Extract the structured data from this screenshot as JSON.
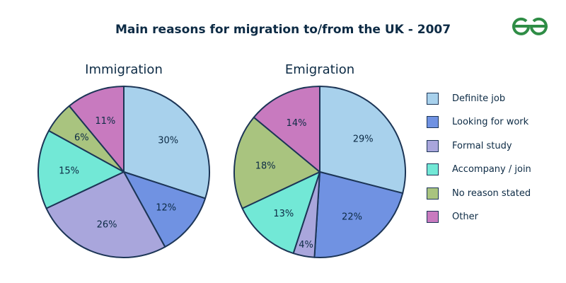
{
  "title": "Main reasons for migration to/from the UK - 2007",
  "logo": {
    "icon": "geeksforgeeks-logo-icon",
    "color": "#2f8d46"
  },
  "chart_data": {
    "type": "pie",
    "title": "Main reasons for migration to/from the UK - 2007",
    "categories": [
      "Definite job",
      "Looking for work",
      "Formal study",
      "Accompany / join",
      "No reason stated",
      "Other"
    ],
    "colors": [
      "#a8d1ec",
      "#7092e2",
      "#a9a6dc",
      "#72e8d6",
      "#a9c47f",
      "#c87abf"
    ],
    "legend_position": "right",
    "pies": [
      {
        "name": "Immigration",
        "values": [
          30,
          12,
          26,
          15,
          6,
          11
        ],
        "labels": [
          "30%",
          "12%",
          "26%",
          "15%",
          "6%",
          "11%"
        ]
      },
      {
        "name": "Emigration",
        "values": [
          29,
          22,
          4,
          13,
          18,
          14
        ],
        "labels": [
          "29%",
          "22%",
          "4%",
          "13%",
          "18%",
          "14%"
        ]
      }
    ]
  }
}
